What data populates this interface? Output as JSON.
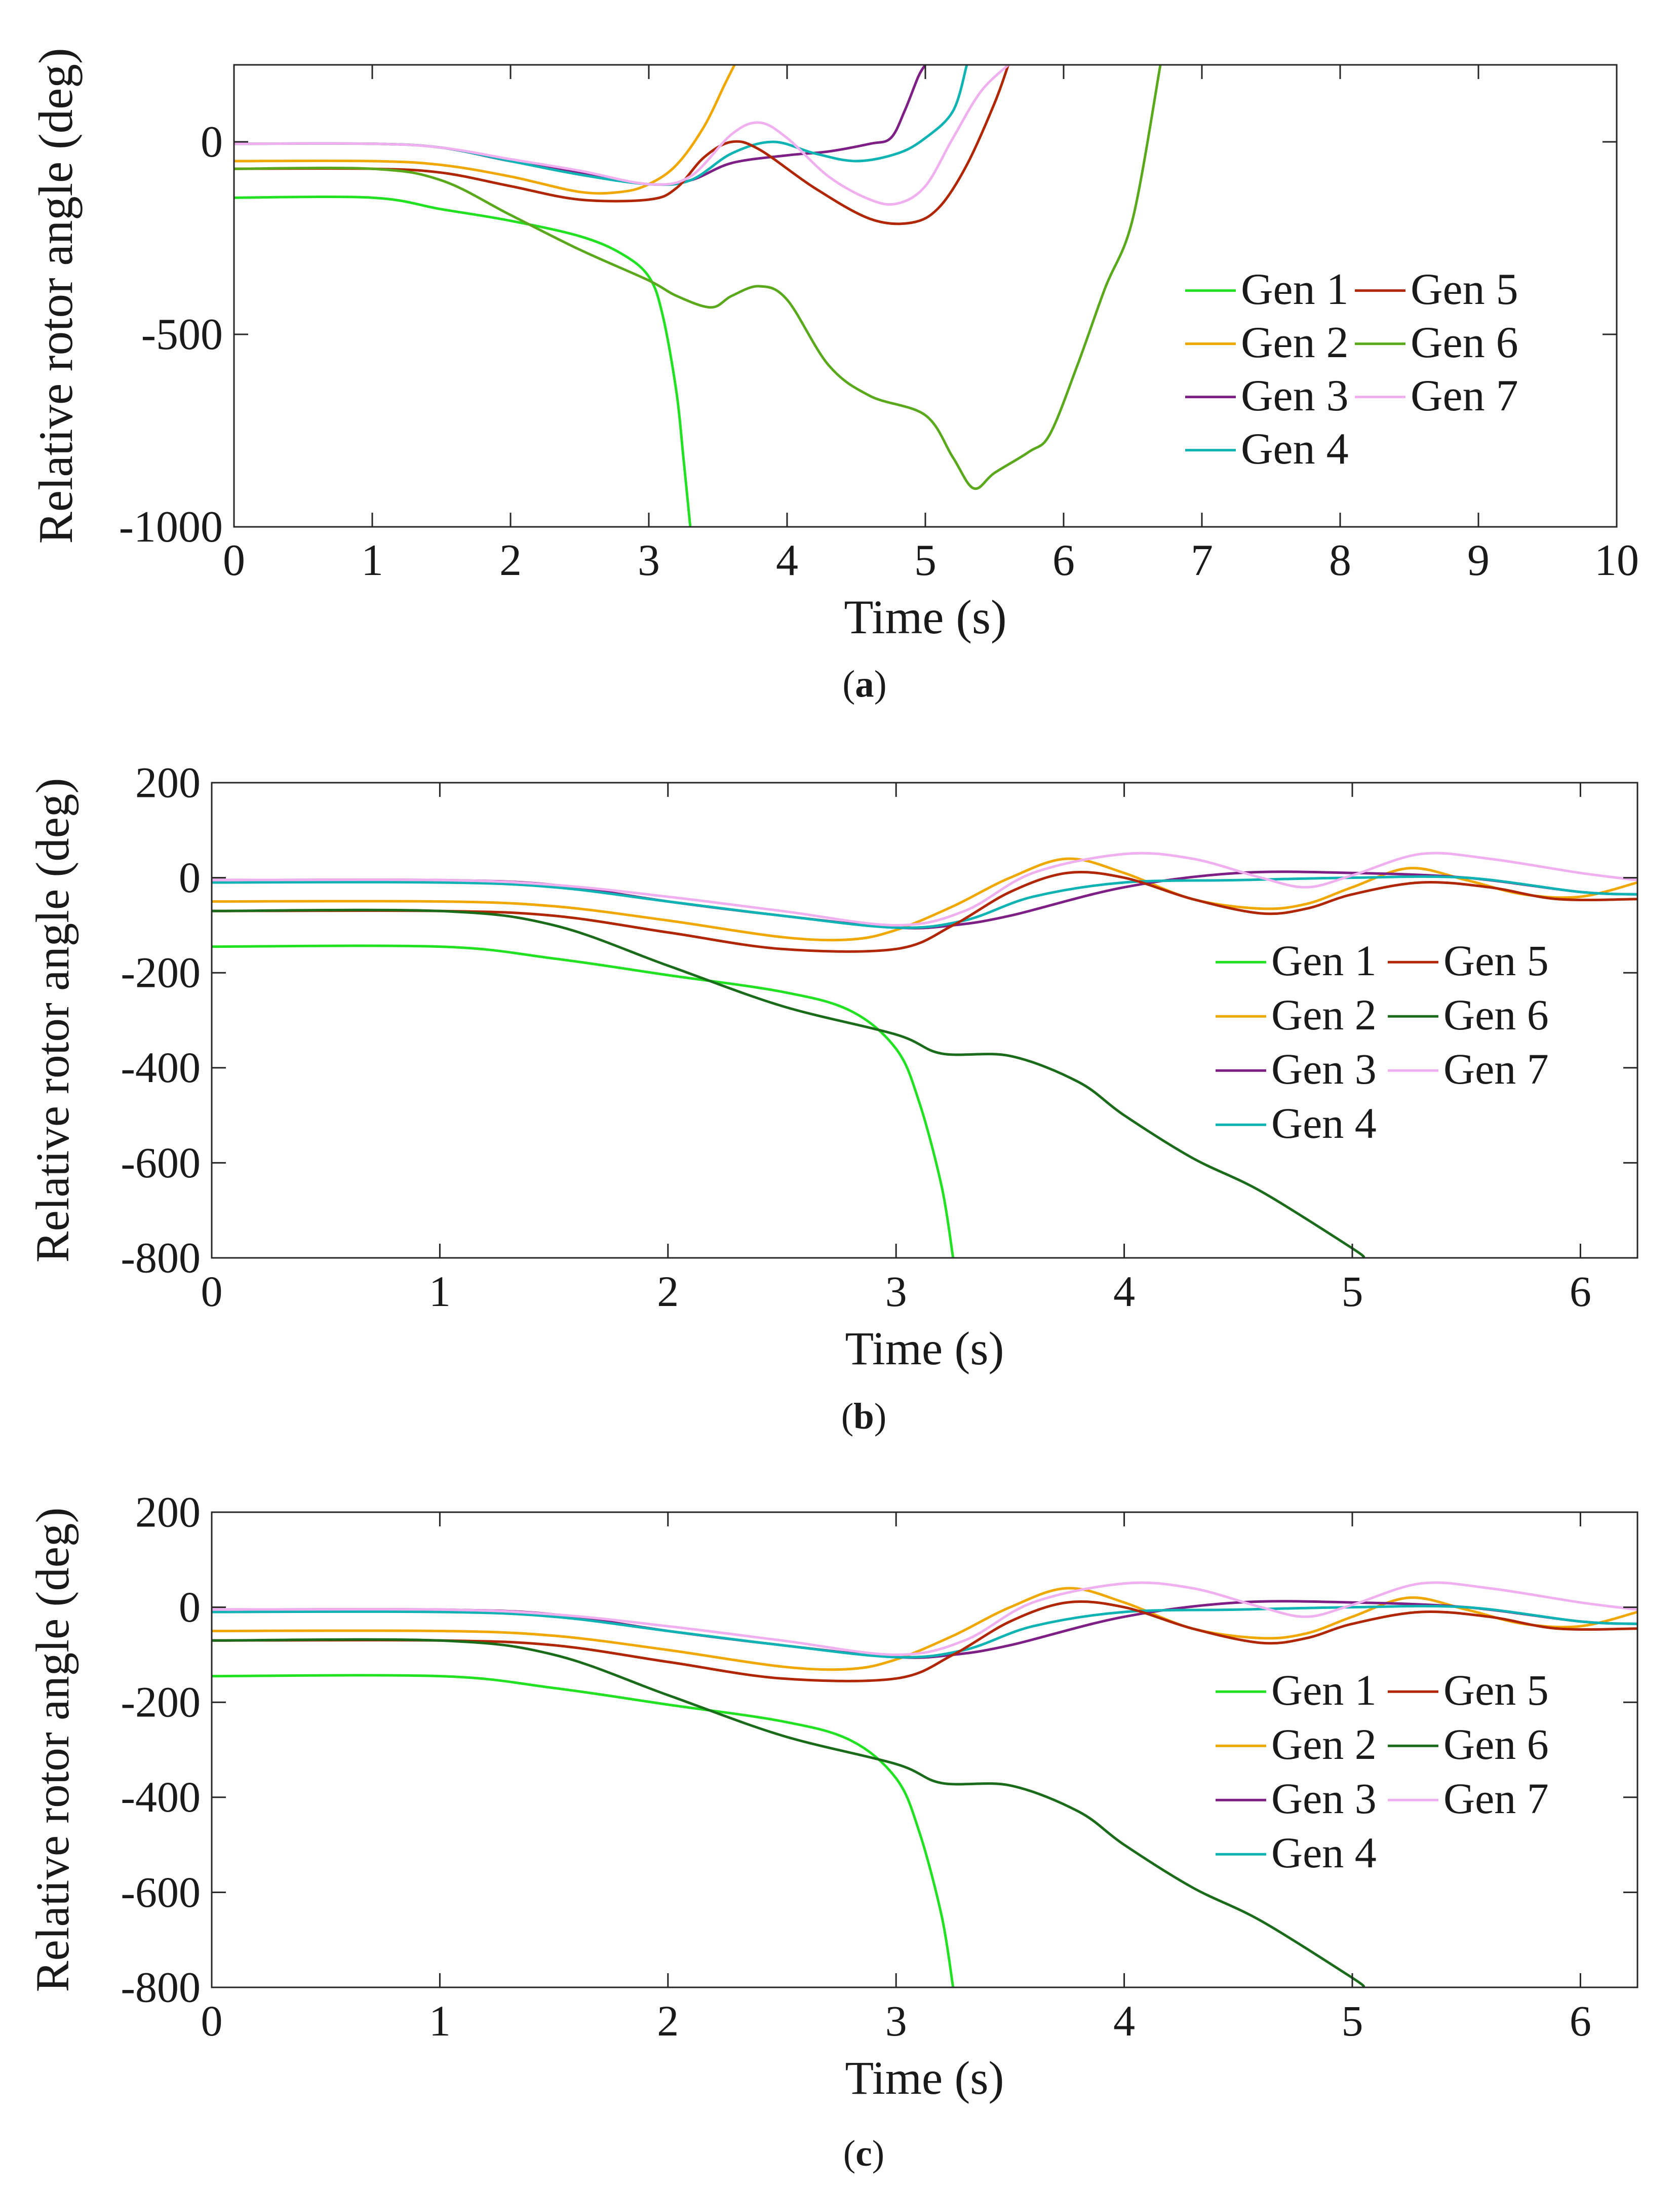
{
  "colors": {
    "Gen 1": "#22e022",
    "Gen 2": "#f0a800",
    "Gen 3": "#7e1f86",
    "Gen 4": "#0fb3b3",
    "Gen 5": "#b02600",
    "Gen 6a": "#5aa81c",
    "Gen 6": "#1a6b1a",
    "Gen 7": "#f0b0f0"
  },
  "chart_data": [
    {
      "type": "line",
      "panel_label": "a",
      "xlabel": "Time (s)",
      "ylabel": "Relative rotor angle (deg)",
      "xlim": [
        0,
        10
      ],
      "ylim": [
        -1000,
        200
      ],
      "xticks": [
        "0",
        "1",
        "2",
        "3",
        "4",
        "5",
        "6",
        "7",
        "8",
        "9",
        "10"
      ],
      "yticks": [
        {
          "v": 0,
          "label": "0"
        },
        {
          "v": -500,
          "label": "-500"
        },
        {
          "v": -1000,
          "label": "-1000"
        }
      ],
      "legend": {
        "position": "right",
        "columns": [
          [
            "Gen 1",
            "Gen 2",
            "Gen 3",
            "Gen 4"
          ],
          [
            "Gen 5",
            "Gen 6",
            "Gen 7"
          ]
        ]
      },
      "series": [
        {
          "name": "Gen 1",
          "color": "#22e022",
          "x": [
            0,
            1,
            1.5,
            2,
            2.5,
            2.8,
            3,
            3.1,
            3.2,
            3.25,
            3.3
          ],
          "y": [
            -145,
            -145,
            -175,
            -205,
            -245,
            -290,
            -350,
            -450,
            -650,
            -820,
            -1000
          ]
        },
        {
          "name": "Gen 2",
          "color": "#f0a800",
          "x": [
            0,
            1,
            1.5,
            2,
            2.5,
            2.8,
            3,
            3.2,
            3.4,
            3.55,
            3.62
          ],
          "y": [
            -50,
            -50,
            -60,
            -90,
            -130,
            -130,
            -110,
            -60,
            40,
            150,
            200
          ]
        },
        {
          "name": "Gen 3",
          "color": "#7e1f86",
          "x": [
            0,
            1,
            1.5,
            2,
            2.5,
            3,
            3.3,
            3.6,
            4,
            4.3,
            4.6,
            4.75,
            4.85,
            4.95,
            5.0
          ],
          "y": [
            -5,
            -5,
            -15,
            -50,
            -80,
            -110,
            -100,
            -55,
            -35,
            -25,
            -5,
            10,
            80,
            170,
            200
          ]
        },
        {
          "name": "Gen 4",
          "color": "#0fb3b3",
          "x": [
            0,
            1,
            1.5,
            2,
            2.5,
            3,
            3.3,
            3.6,
            3.9,
            4.2,
            4.5,
            4.8,
            5.0,
            5.2,
            5.3
          ],
          "y": [
            -5,
            -5,
            -15,
            -50,
            -85,
            -110,
            -100,
            -30,
            0,
            -30,
            -50,
            -30,
            10,
            80,
            200
          ]
        },
        {
          "name": "Gen 5",
          "color": "#b02600",
          "x": [
            0,
            1,
            1.5,
            2,
            2.5,
            3,
            3.2,
            3.4,
            3.6,
            3.8,
            4.2,
            4.6,
            4.9,
            5.1,
            5.3,
            5.5,
            5.6
          ],
          "y": [
            -70,
            -70,
            -80,
            -115,
            -150,
            -150,
            -120,
            -40,
            0,
            -20,
            -120,
            -200,
            -210,
            -170,
            -60,
            100,
            200
          ]
        },
        {
          "name": "Gen 6",
          "color": "#5aa81c",
          "x": [
            0,
            1,
            1.5,
            2,
            2.5,
            3,
            3.2,
            3.45,
            3.6,
            3.8,
            4.0,
            4.3,
            4.6,
            5.0,
            5.2,
            5.35,
            5.5,
            5.75,
            5.9,
            6.1,
            6.3,
            6.5,
            6.7
          ],
          "y": [
            -70,
            -70,
            -100,
            -190,
            -280,
            -360,
            -400,
            -430,
            -400,
            -375,
            -410,
            -580,
            -660,
            -710,
            -820,
            -900,
            -860,
            -805,
            -760,
            -580,
            -380,
            -200,
            200
          ]
        },
        {
          "name": "Gen 7",
          "color": "#f0b0f0",
          "x": [
            0,
            1,
            1.5,
            2,
            2.5,
            3,
            3.3,
            3.6,
            3.8,
            4.0,
            4.3,
            4.6,
            4.8,
            5.0,
            5.2,
            5.4,
            5.6
          ],
          "y": [
            -5,
            -5,
            -15,
            -45,
            -75,
            -110,
            -90,
            20,
            50,
            10,
            -90,
            -150,
            -160,
            -115,
            10,
            130,
            200
          ]
        }
      ]
    },
    {
      "type": "line",
      "panel_label": "b",
      "xlabel": "Time (s)",
      "ylabel": "Relative rotor angle (deg)",
      "xlim": [
        0,
        6.25
      ],
      "ylim": [
        -800,
        200
      ],
      "xticks": [
        "0",
        "1",
        "2",
        "3",
        "4",
        "5",
        "6"
      ],
      "yticks": [
        {
          "v": 200,
          "label": "200"
        },
        {
          "v": 0,
          "label": "0"
        },
        {
          "v": -200,
          "label": "-200"
        },
        {
          "v": -400,
          "label": "-400"
        },
        {
          "v": -600,
          "label": "-600"
        },
        {
          "v": -800,
          "label": "-800"
        }
      ],
      "legend": {
        "position": "right",
        "columns": [
          [
            "Gen 1",
            "Gen 2",
            "Gen 3",
            "Gen 4"
          ],
          [
            "Gen 5",
            "Gen 6",
            "Gen 7"
          ]
        ]
      },
      "series": [
        {
          "name": "Gen 1",
          "color": "#22e022",
          "x": [
            0,
            1,
            1.5,
            2,
            2.5,
            2.8,
            3.0,
            3.1,
            3.2,
            3.25
          ],
          "y": [
            -145,
            -145,
            -170,
            -205,
            -240,
            -280,
            -360,
            -470,
            -650,
            -800
          ]
        },
        {
          "name": "Gen 2",
          "color": "#f0a800",
          "x": [
            0,
            1,
            1.5,
            2,
            2.5,
            2.8,
            3.0,
            3.25,
            3.5,
            3.75,
            4.0,
            4.3,
            4.6,
            4.8,
            5.0,
            5.25,
            5.5,
            5.75,
            6.0,
            6.25
          ],
          "y": [
            -50,
            -50,
            -60,
            -90,
            -125,
            -130,
            -110,
            -60,
            0,
            40,
            10,
            -45,
            -65,
            -55,
            -20,
            20,
            -5,
            -35,
            -40,
            -10
          ]
        },
        {
          "name": "Gen 3",
          "color": "#7e1f86",
          "x": [
            0,
            1,
            1.5,
            2,
            2.5,
            3,
            3.25,
            3.5,
            4.0,
            4.5,
            5.0,
            5.5,
            6.0,
            6.25
          ],
          "y": [
            -5,
            -5,
            -15,
            -50,
            -80,
            -105,
            -100,
            -80,
            -20,
            10,
            10,
            0,
            -30,
            -35
          ]
        },
        {
          "name": "Gen 4",
          "color": "#0fb3b3",
          "x": [
            0,
            1,
            1.5,
            2,
            2.5,
            3,
            3.3,
            3.6,
            4.0,
            4.5,
            5.0,
            5.5,
            6.0,
            6.25
          ],
          "y": [
            -10,
            -10,
            -20,
            -50,
            -80,
            -105,
            -90,
            -40,
            -10,
            -5,
            0,
            0,
            -30,
            -35
          ]
        },
        {
          "name": "Gen 5",
          "color": "#b02600",
          "x": [
            0,
            1,
            1.5,
            2,
            2.5,
            3.0,
            3.25,
            3.5,
            3.75,
            4.0,
            4.3,
            4.6,
            4.8,
            5.0,
            5.3,
            5.6,
            5.9,
            6.25
          ],
          "y": [
            -70,
            -70,
            -80,
            -115,
            -150,
            -150,
            -100,
            -30,
            10,
            0,
            -45,
            -75,
            -65,
            -35,
            -10,
            -20,
            -45,
            -45
          ]
        },
        {
          "name": "Gen 6",
          "color": "#1a6b1a",
          "x": [
            0,
            1,
            1.5,
            2,
            2.5,
            3,
            3.2,
            3.5,
            3.8,
            4.0,
            4.3,
            4.6,
            5.0,
            5.05
          ],
          "y": [
            -70,
            -70,
            -100,
            -185,
            -270,
            -330,
            -370,
            -375,
            -430,
            -500,
            -590,
            -660,
            -780,
            -800
          ]
        },
        {
          "name": "Gen 7",
          "color": "#f0b0f0",
          "x": [
            0,
            1,
            1.5,
            2,
            2.5,
            3,
            3.3,
            3.6,
            4.0,
            4.3,
            4.6,
            4.8,
            5.0,
            5.3,
            5.6,
            6.0,
            6.25
          ],
          "y": [
            -5,
            -5,
            -15,
            -40,
            -70,
            -100,
            -70,
            10,
            50,
            40,
            0,
            -20,
            5,
            50,
            40,
            10,
            -5
          ]
        }
      ]
    },
    {
      "type": "line",
      "panel_label": "c",
      "xlabel": "Time (s)",
      "ylabel": "Relative rotor angle (deg)",
      "xlim": [
        0,
        6.25
      ],
      "ylim": [
        -800,
        200
      ],
      "xticks": [
        "0",
        "1",
        "2",
        "3",
        "4",
        "5",
        "6"
      ],
      "yticks": [
        {
          "v": 200,
          "label": "200"
        },
        {
          "v": 0,
          "label": "0"
        },
        {
          "v": -200,
          "label": "-200"
        },
        {
          "v": -400,
          "label": "-400"
        },
        {
          "v": -600,
          "label": "-600"
        },
        {
          "v": -800,
          "label": "-800"
        }
      ],
      "legend": {
        "position": "right",
        "columns": [
          [
            "Gen 1",
            "Gen 2",
            "Gen 3",
            "Gen 4"
          ],
          [
            "Gen 5",
            "Gen 6",
            "Gen 7"
          ]
        ]
      },
      "series": [
        {
          "name": "Gen 1",
          "color": "#22e022",
          "x": [
            0,
            1,
            1.5,
            2,
            2.5,
            2.8,
            3.0,
            3.1,
            3.2,
            3.25
          ],
          "y": [
            -145,
            -145,
            -170,
            -205,
            -240,
            -280,
            -360,
            -470,
            -650,
            -800
          ]
        },
        {
          "name": "Gen 2",
          "color": "#f0a800",
          "x": [
            0,
            1,
            1.5,
            2,
            2.5,
            2.8,
            3.0,
            3.25,
            3.5,
            3.75,
            4.0,
            4.3,
            4.6,
            4.8,
            5.0,
            5.25,
            5.5,
            5.75,
            6.0,
            6.25
          ],
          "y": [
            -50,
            -50,
            -60,
            -90,
            -125,
            -130,
            -110,
            -60,
            0,
            40,
            10,
            -45,
            -65,
            -55,
            -20,
            20,
            -5,
            -35,
            -40,
            -10
          ]
        },
        {
          "name": "Gen 3",
          "color": "#7e1f86",
          "x": [
            0,
            1,
            1.5,
            2,
            2.5,
            3,
            3.25,
            3.5,
            4.0,
            4.5,
            5.0,
            5.5,
            6.0,
            6.25
          ],
          "y": [
            -5,
            -5,
            -15,
            -50,
            -80,
            -105,
            -100,
            -80,
            -20,
            10,
            10,
            0,
            -30,
            -35
          ]
        },
        {
          "name": "Gen 4",
          "color": "#0fb3b3",
          "x": [
            0,
            1,
            1.5,
            2,
            2.5,
            3,
            3.3,
            3.6,
            4.0,
            4.5,
            5.0,
            5.5,
            6.0,
            6.25
          ],
          "y": [
            -10,
            -10,
            -20,
            -50,
            -80,
            -105,
            -90,
            -40,
            -10,
            -5,
            0,
            0,
            -30,
            -35
          ]
        },
        {
          "name": "Gen 5",
          "color": "#b02600",
          "x": [
            0,
            1,
            1.5,
            2,
            2.5,
            3.0,
            3.25,
            3.5,
            3.75,
            4.0,
            4.3,
            4.6,
            4.8,
            5.0,
            5.3,
            5.6,
            5.9,
            6.25
          ],
          "y": [
            -70,
            -70,
            -80,
            -115,
            -150,
            -150,
            -100,
            -30,
            10,
            0,
            -45,
            -75,
            -65,
            -35,
            -10,
            -20,
            -45,
            -45
          ]
        },
        {
          "name": "Gen 6",
          "color": "#1a6b1a",
          "x": [
            0,
            1,
            1.5,
            2,
            2.5,
            3,
            3.2,
            3.5,
            3.8,
            4.0,
            4.3,
            4.6,
            5.0,
            5.05
          ],
          "y": [
            -70,
            -70,
            -100,
            -185,
            -270,
            -330,
            -370,
            -375,
            -430,
            -500,
            -590,
            -660,
            -780,
            -800
          ]
        },
        {
          "name": "Gen 7",
          "color": "#f0b0f0",
          "x": [
            0,
            1,
            1.5,
            2,
            2.5,
            3,
            3.3,
            3.6,
            4.0,
            4.3,
            4.6,
            4.8,
            5.0,
            5.3,
            5.6,
            6.0,
            6.25
          ],
          "y": [
            -5,
            -5,
            -15,
            -40,
            -70,
            -100,
            -70,
            10,
            50,
            40,
            0,
            -20,
            5,
            50,
            40,
            10,
            -5
          ]
        }
      ]
    }
  ]
}
